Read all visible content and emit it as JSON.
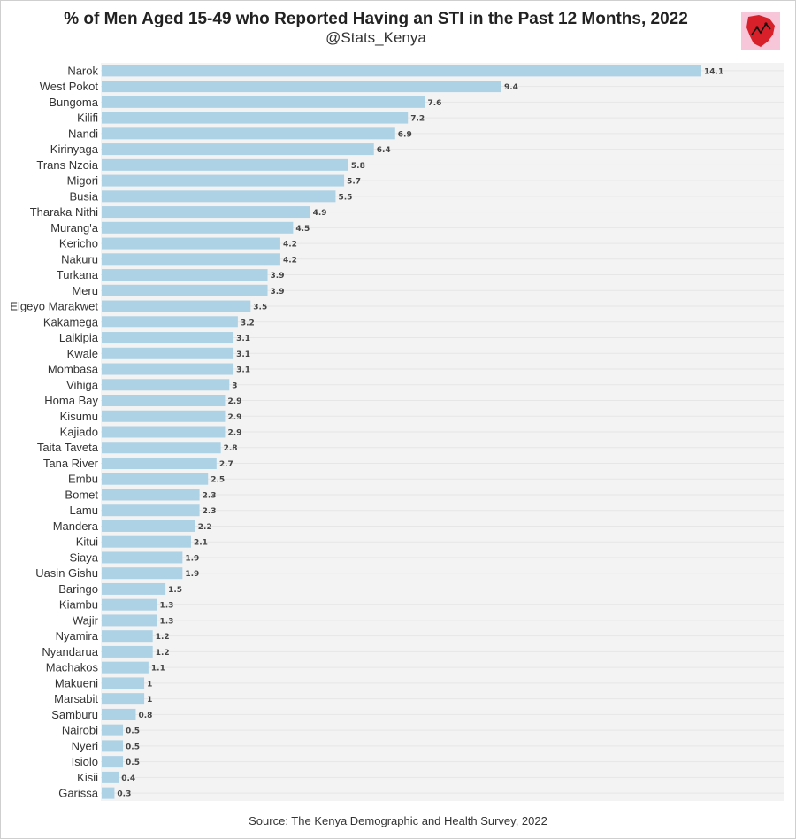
{
  "header": {
    "title": "% of Men Aged 15-49 who Reported Having an STI in the Past 12 Months, 2022",
    "subtitle": "@Stats_Kenya"
  },
  "footer": {
    "source": "Source: The Kenya Demographic and Health Survey, 2022"
  },
  "colors": {
    "bar": "#aed2e5",
    "plot_background": "#f3f3f3",
    "grid": "#e6e6e6"
  },
  "chart_data": {
    "type": "bar",
    "orientation": "horizontal",
    "title": "% of Men Aged 15-49 who Reported Having an STI in the Past 12 Months, 2022",
    "xlabel": "",
    "ylabel": "",
    "xlim": [
      0,
      14.1
    ],
    "grid": true,
    "legend": "none",
    "categories": [
      "Narok",
      "West Pokot",
      "Bungoma",
      "Kilifi",
      "Nandi",
      "Kirinyaga",
      "Trans Nzoia",
      "Migori",
      "Busia",
      "Tharaka Nithi",
      "Murang'a",
      "Kericho",
      "Nakuru",
      "Turkana",
      "Meru",
      "Elgeyo Marakwet",
      "Kakamega",
      "Laikipia",
      "Kwale",
      "Mombasa",
      "Vihiga",
      "Homa Bay",
      "Kisumu",
      "Kajiado",
      "Taita Taveta",
      "Tana River",
      "Embu",
      "Bomet",
      "Lamu",
      "Mandera",
      "Kitui",
      "Siaya",
      "Uasin Gishu",
      "Baringo",
      "Kiambu",
      "Wajir",
      "Nyamira",
      "Nyandarua",
      "Machakos",
      "Makueni",
      "Marsabit",
      "Samburu",
      "Nairobi",
      "Nyeri",
      "Isiolo",
      "Kisii",
      "Garissa"
    ],
    "values": [
      14.1,
      9.4,
      7.6,
      7.2,
      6.9,
      6.4,
      5.8,
      5.7,
      5.5,
      4.9,
      4.5,
      4.2,
      4.2,
      3.9,
      3.9,
      3.5,
      3.2,
      3.1,
      3.1,
      3.1,
      3,
      2.9,
      2.9,
      2.9,
      2.8,
      2.7,
      2.5,
      2.3,
      2.3,
      2.2,
      2.1,
      1.9,
      1.9,
      1.5,
      1.3,
      1.3,
      1.2,
      1.2,
      1.1,
      1,
      1,
      0.8,
      0.5,
      0.5,
      0.5,
      0.4,
      0.3
    ]
  }
}
